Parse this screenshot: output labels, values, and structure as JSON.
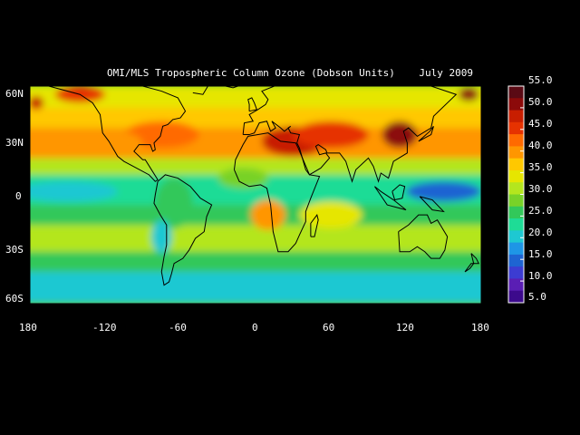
{
  "title": "OMI/MLS Tropospheric Column Ozone (Dobson Units)    July 2009",
  "map": {
    "projection": "equirectangular",
    "lon_range": [
      -180,
      180
    ],
    "lat_range": [
      -65,
      65
    ],
    "x_tick_labels": [
      "180",
      "-120",
      "-60",
      "0",
      "60",
      "120",
      "180"
    ],
    "y_tick_labels": [
      "60N",
      "30N",
      "0",
      "30S",
      "60S"
    ],
    "coastlines": true
  },
  "colorbar": {
    "labels": [
      "55.0",
      "50.0",
      "45.0",
      "40.0",
      "35.0",
      "30.0",
      "25.0",
      "20.0",
      "15.0",
      "10.0",
      "5.0"
    ],
    "colors": [
      "#5a0a14",
      "#8c0a0a",
      "#c81e00",
      "#e63200",
      "#ff6a00",
      "#ff9600",
      "#ffc800",
      "#e6e600",
      "#b4e61e",
      "#78d228",
      "#32c85a",
      "#1edc96",
      "#1ec8d2",
      "#1e96e6",
      "#1e64d2",
      "#3c3cd2",
      "#5a1eb4",
      "#3c0a8c"
    ]
  },
  "chart_data": {
    "type": "heatmap",
    "title": "OMI/MLS Tropospheric Column Ozone (Dobson Units)    July 2009",
    "xlabel": "",
    "ylabel": "",
    "x_ticks": [
      -180,
      -120,
      -60,
      0,
      60,
      120,
      180
    ],
    "y_ticks": [
      60,
      30,
      0,
      -30,
      -60
    ],
    "colorbar_range": [
      5.0,
      55.0
    ],
    "colorbar_ticks": [
      5.0,
      10.0,
      15.0,
      20.0,
      25.0,
      30.0,
      35.0,
      40.0,
      45.0,
      50.0,
      55.0
    ],
    "units": "Dobson Units",
    "legend_position": "right"
  }
}
